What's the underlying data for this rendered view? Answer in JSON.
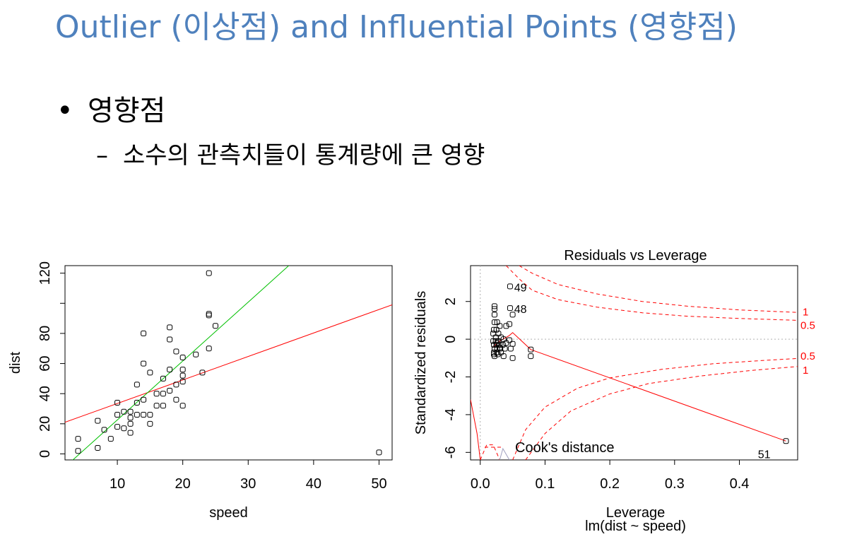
{
  "slide": {
    "title": "Outlier (이상점) and Influential Points (영향점)",
    "bullet": "영향점",
    "sub_bullet": "소수의 관측치들이 통계량에 큰 영향",
    "bullet_marker": "•",
    "sub_marker": "–"
  },
  "colors": {
    "title": "#4f81bd",
    "red": "#ff0000",
    "green": "#00c000",
    "gray": "#b0b0b0"
  },
  "chart_data": [
    {
      "type": "scatter",
      "title": "",
      "xlabel": "speed",
      "ylabel": "dist",
      "xlim": [
        2,
        52
      ],
      "ylim": [
        -4,
        125
      ],
      "xticks": [
        10,
        20,
        30,
        40,
        50
      ],
      "yticks": [
        0,
        20,
        40,
        60,
        80,
        120
      ],
      "grid": false,
      "points": [
        [
          4,
          2
        ],
        [
          4,
          10
        ],
        [
          7,
          4
        ],
        [
          7,
          22
        ],
        [
          8,
          16
        ],
        [
          9,
          10
        ],
        [
          10,
          18
        ],
        [
          10,
          26
        ],
        [
          10,
          34
        ],
        [
          11,
          17
        ],
        [
          11,
          28
        ],
        [
          12,
          14
        ],
        [
          12,
          20
        ],
        [
          12,
          24
        ],
        [
          12,
          28
        ],
        [
          13,
          26
        ],
        [
          13,
          34
        ],
        [
          13,
          46
        ],
        [
          14,
          26
        ],
        [
          14,
          36
        ],
        [
          14,
          60
        ],
        [
          14,
          80
        ],
        [
          15,
          20
        ],
        [
          15,
          26
        ],
        [
          15,
          54
        ],
        [
          16,
          32
        ],
        [
          16,
          40
        ],
        [
          17,
          32
        ],
        [
          17,
          40
        ],
        [
          17,
          50
        ],
        [
          18,
          42
        ],
        [
          18,
          56
        ],
        [
          18,
          76
        ],
        [
          18,
          84
        ],
        [
          19,
          36
        ],
        [
          19,
          46
        ],
        [
          19,
          68
        ],
        [
          20,
          32
        ],
        [
          20,
          48
        ],
        [
          20,
          52
        ],
        [
          20,
          56
        ],
        [
          20,
          64
        ],
        [
          22,
          66
        ],
        [
          23,
          54
        ],
        [
          24,
          70
        ],
        [
          24,
          92
        ],
        [
          24,
          93
        ],
        [
          24,
          120
        ],
        [
          25,
          85
        ],
        [
          50,
          1
        ]
      ],
      "lines": [
        {
          "label": "red fit",
          "color": "#ff0000",
          "from": [
            2,
            21.0
          ],
          "to": [
            52,
            99.0
          ]
        },
        {
          "label": "green fit",
          "color": "#00c000",
          "from": [
            2,
            -8.7
          ],
          "to": [
            36.2,
            125
          ]
        }
      ]
    },
    {
      "type": "scatter",
      "title": "Residuals vs Leverage",
      "xlabel": "Leverage",
      "subtitle": "lm(dist ~ speed)",
      "ylabel": "Standardized residuals",
      "xlim": [
        -0.015,
        0.49
      ],
      "ylim": [
        -6.4,
        3.9
      ],
      "xticks": [
        0.0,
        0.1,
        0.2,
        0.3,
        0.4
      ],
      "yticks": [
        2,
        0,
        -2,
        -4,
        -6
      ],
      "xtick_labels": [
        "0.0",
        "0.1",
        "0.2",
        "0.3",
        "0.4"
      ],
      "ytick_labels": [
        "2",
        "0",
        "-2",
        "-4",
        "-6"
      ],
      "legend_text": "Cook's distance",
      "contour_labels": [
        "1",
        "0.5",
        "0.5",
        "1"
      ],
      "point_labels": [
        {
          "text": "49",
          "x": 0.048,
          "y": 2.8
        },
        {
          "text": "48",
          "x": 0.048,
          "y": 1.65
        },
        {
          "text": "51",
          "x": 0.448,
          "y": -5.7
        }
      ],
      "points": [
        [
          0.046,
          2.8
        ],
        [
          0.046,
          1.65
        ],
        [
          0.022,
          1.75
        ],
        [
          0.022,
          1.6
        ],
        [
          0.022,
          1.3
        ],
        [
          0.022,
          0.9
        ],
        [
          0.026,
          0.9
        ],
        [
          0.03,
          0.7
        ],
        [
          0.04,
          0.7
        ],
        [
          0.045,
          0.8
        ],
        [
          0.021,
          0.5
        ],
        [
          0.025,
          0.5
        ],
        [
          0.02,
          0.3
        ],
        [
          0.028,
          0.3
        ],
        [
          0.032,
          0.1
        ],
        [
          0.036,
          0.0
        ],
        [
          0.02,
          -0.1
        ],
        [
          0.024,
          -0.1
        ],
        [
          0.028,
          -0.1
        ],
        [
          0.021,
          -0.3
        ],
        [
          0.025,
          -0.3
        ],
        [
          0.03,
          -0.3
        ],
        [
          0.035,
          -0.3
        ],
        [
          0.022,
          -0.5
        ],
        [
          0.026,
          -0.5
        ],
        [
          0.031,
          -0.5
        ],
        [
          0.038,
          -0.5
        ],
        [
          0.047,
          -0.5
        ],
        [
          0.021,
          -0.7
        ],
        [
          0.026,
          -0.7
        ],
        [
          0.032,
          -0.7
        ],
        [
          0.021,
          -0.8
        ],
        [
          0.027,
          -0.8
        ],
        [
          0.036,
          -0.9
        ],
        [
          0.05,
          -1.0
        ],
        [
          0.022,
          -0.9
        ],
        [
          0.05,
          1.3
        ],
        [
          0.078,
          -0.55
        ],
        [
          0.078,
          -0.9
        ],
        [
          0.05,
          -0.25
        ],
        [
          0.04,
          -0.2
        ],
        [
          0.03,
          -0.45
        ],
        [
          0.045,
          -0.05
        ],
        [
          0.024,
          0.1
        ],
        [
          0.026,
          -0.2
        ],
        [
          0.472,
          -5.4
        ]
      ],
      "smooth": [
        [
          0.02,
          -0.4
        ],
        [
          0.03,
          -0.1
        ],
        [
          0.045,
          0.2
        ],
        [
          0.05,
          0.35
        ],
        [
          0.078,
          -0.55
        ],
        [
          0.472,
          -5.4
        ]
      ],
      "cook_curves": {
        "upper_1": [
          [
            0.06,
            3.9
          ],
          [
            0.08,
            3.5
          ],
          [
            0.12,
            2.9
          ],
          [
            0.18,
            2.4
          ],
          [
            0.25,
            2.0
          ],
          [
            0.32,
            1.75
          ],
          [
            0.4,
            1.55
          ],
          [
            0.49,
            1.42
          ]
        ],
        "upper_05": [
          [
            0.04,
            3.9
          ],
          [
            0.06,
            3.2
          ],
          [
            0.08,
            2.6
          ],
          [
            0.12,
            2.1
          ],
          [
            0.18,
            1.7
          ],
          [
            0.25,
            1.4
          ],
          [
            0.32,
            1.22
          ],
          [
            0.4,
            1.1
          ],
          [
            0.49,
            1.0
          ]
        ],
        "lower_05": [
          [
            0.05,
            -6.4
          ],
          [
            0.07,
            -4.8
          ],
          [
            0.1,
            -3.6
          ],
          [
            0.15,
            -2.6
          ],
          [
            0.2,
            -2.05
          ],
          [
            0.28,
            -1.6
          ],
          [
            0.36,
            -1.3
          ],
          [
            0.44,
            -1.12
          ],
          [
            0.49,
            -1.02
          ]
        ],
        "lower_1": [
          [
            0.07,
            -6.4
          ],
          [
            0.1,
            -5.0
          ],
          [
            0.14,
            -3.8
          ],
          [
            0.2,
            -2.9
          ],
          [
            0.26,
            -2.35
          ],
          [
            0.34,
            -1.95
          ],
          [
            0.42,
            -1.65
          ],
          [
            0.49,
            -1.45
          ]
        ],
        "near0_a": [
          [
            -0.015,
            -3.2
          ],
          [
            -0.005,
            -5.0
          ],
          [
            0.0,
            -6.4
          ]
        ],
        "near0_b": [
          [
            0.0,
            -6.4
          ],
          [
            0.01,
            -5.6
          ],
          [
            0.02,
            -5.6
          ],
          [
            0.03,
            -6.4
          ]
        ],
        "near0_c": [
          [
            0.03,
            -6.4
          ],
          [
            0.035,
            -5.8
          ],
          [
            0.045,
            -6.4
          ]
        ]
      }
    }
  ]
}
